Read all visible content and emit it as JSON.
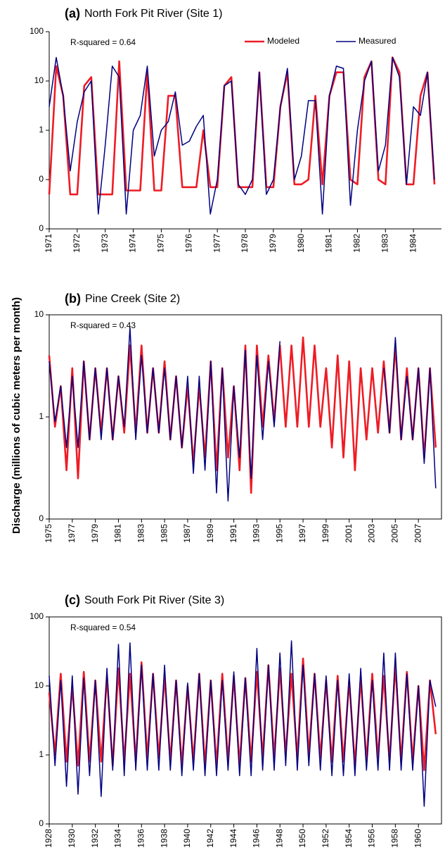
{
  "y_label": "Discharge (millions of cubic meters per month)",
  "chart_data": [
    {
      "type": "line",
      "label": "(a)",
      "title": "North Fork Pit River (Site 1)",
      "annotation": "R-squared = 0.64",
      "log_y": true,
      "box": false,
      "legend": "top-right",
      "ylim": [
        0.01,
        100
      ],
      "yticks": [
        {
          "value": 0.01,
          "label": "0"
        },
        {
          "value": 0.1,
          "label": "0"
        },
        1,
        10,
        100
      ],
      "xlim": [
        1971,
        1985
      ],
      "xticks": [
        1971,
        1972,
        1973,
        1974,
        1975,
        1976,
        1977,
        1978,
        1979,
        1980,
        1981,
        1982,
        1983,
        1984
      ],
      "x": [
        1971,
        1971.25,
        1971.5,
        1971.75,
        1972,
        1972.25,
        1972.5,
        1972.75,
        1973,
        1973.25,
        1973.5,
        1973.75,
        1974,
        1974.25,
        1974.5,
        1974.75,
        1975,
        1975.25,
        1975.5,
        1975.75,
        1976,
        1976.25,
        1976.5,
        1976.75,
        1977,
        1977.25,
        1977.5,
        1977.75,
        1978,
        1978.25,
        1978.5,
        1978.75,
        1979,
        1979.25,
        1979.5,
        1979.75,
        1980,
        1980.25,
        1980.5,
        1980.75,
        1981,
        1981.25,
        1981.5,
        1981.75,
        1982,
        1982.25,
        1982.5,
        1982.75,
        1983,
        1983.25,
        1983.5,
        1983.75,
        1984,
        1984.25,
        1984.5,
        1984.75
      ],
      "series": [
        {
          "name": "Modeled",
          "color": "#ee1c25",
          "values": [
            0.05,
            20,
            5,
            0.05,
            0.05,
            8,
            12,
            0.05,
            0.05,
            0.05,
            25,
            0.06,
            0.06,
            0.06,
            15,
            0.06,
            0.06,
            5,
            5,
            0.07,
            0.07,
            0.07,
            1,
            0.07,
            0.07,
            8,
            12,
            0.07,
            0.07,
            0.07,
            15,
            0.07,
            0.07,
            3,
            15,
            0.08,
            0.08,
            0.1,
            5,
            0.08,
            5,
            15,
            15,
            0.1,
            0.08,
            12,
            25,
            0.1,
            0.08,
            30,
            15,
            0.08,
            0.08,
            5,
            15,
            0.08
          ]
        },
        {
          "name": "Measured",
          "color": "#000080",
          "values": [
            3,
            30,
            5,
            0.15,
            1.5,
            6,
            10,
            0.02,
            0.5,
            20,
            12,
            0.02,
            1,
            2,
            20,
            0.3,
            1,
            1.5,
            6,
            0.5,
            0.6,
            1.2,
            2,
            0.02,
            0.1,
            8,
            10,
            0.08,
            0.05,
            0.1,
            15,
            0.05,
            0.1,
            3,
            18,
            0.1,
            0.3,
            4,
            4,
            0.02,
            5,
            20,
            18,
            0.03,
            1,
            10,
            25,
            0.15,
            0.5,
            30,
            12,
            0.08,
            3,
            2,
            15,
            0.1
          ]
        }
      ]
    },
    {
      "type": "line",
      "label": "(b)",
      "title": "Pine Creek (Site 2)",
      "annotation": "R-squared = 0.43",
      "log_y": true,
      "box": true,
      "ylim": [
        0.1,
        10
      ],
      "yticks": [
        {
          "value": 0.1,
          "label": "0"
        },
        1,
        10
      ],
      "xlim": [
        1975,
        2009
      ],
      "xticks": [
        1975,
        1977,
        1979,
        1981,
        1983,
        1985,
        1987,
        1989,
        1991,
        1993,
        1995,
        1997,
        1999,
        2001,
        2003,
        2005,
        2007
      ],
      "x": [
        1975,
        1975.5,
        1976,
        1976.5,
        1977,
        1977.5,
        1978,
        1978.5,
        1979,
        1979.5,
        1980,
        1980.5,
        1981,
        1981.5,
        1982,
        1982.5,
        1983,
        1983.5,
        1984,
        1984.5,
        1985,
        1985.5,
        1986,
        1986.5,
        1987,
        1987.5,
        1988,
        1988.5,
        1989,
        1989.5,
        1990,
        1990.5,
        1991,
        1991.5,
        1992,
        1992.5,
        1993,
        1993.5,
        1994,
        1994.5,
        1995,
        1995.5,
        1996,
        1996.5,
        1997,
        1997.5,
        1998,
        1998.5,
        1999,
        1999.5,
        2000,
        2000.5,
        2001,
        2001.5,
        2002,
        2002.5,
        2003,
        2003.5,
        2004,
        2004.5,
        2005,
        2005.5,
        2006,
        2006.5,
        2007,
        2007.5,
        2008,
        2008.5
      ],
      "series": [
        {
          "color": "#ee1c25",
          "values": [
            4,
            0.8,
            2,
            0.3,
            3,
            0.25,
            3.5,
            0.6,
            3,
            0.7,
            3,
            0.6,
            2.5,
            0.7,
            5,
            0.7,
            5,
            0.7,
            3,
            0.7,
            3.5,
            0.6,
            2.5,
            0.5,
            2,
            0.35,
            2,
            0.4,
            3.5,
            0.3,
            3,
            0.4,
            2,
            0.3,
            5,
            0.18,
            5,
            0.8,
            4,
            0.9,
            5,
            0.8,
            5,
            0.8,
            6,
            0.8,
            5,
            0.8,
            3,
            0.5,
            4,
            0.4,
            3.5,
            0.3,
            3,
            0.6,
            3,
            0.7,
            3.5,
            0.7,
            5,
            0.6,
            3,
            0.6,
            3,
            0.4,
            3,
            0.5
          ]
        },
        {
          "color": "#000080",
          "values": [
            3.5,
            0.9,
            2,
            0.5,
            2.5,
            0.5,
            3.5,
            0.6,
            3,
            0.6,
            3,
            0.6,
            2.5,
            0.8,
            7.5,
            0.6,
            4,
            0.7,
            3,
            0.7,
            3,
            0.6,
            2.5,
            0.5,
            2.5,
            0.28,
            2.5,
            0.3,
            3.5,
            0.18,
            3,
            0.15,
            2,
            0.4,
            4.5,
            0.25,
            4,
            0.6,
            3.5,
            0.8,
            5.5,
            null,
            null,
            null,
            null,
            null,
            null,
            null,
            null,
            null,
            null,
            null,
            null,
            null,
            null,
            null,
            null,
            null,
            3,
            0.7,
            6,
            0.6,
            2.5,
            0.6,
            3,
            0.35,
            3,
            0.2
          ]
        }
      ]
    },
    {
      "type": "line",
      "label": "(c)",
      "title": "South Fork Pit River (Site 3)",
      "annotation": "R-squared = 0.54",
      "log_y": true,
      "box": true,
      "ylim": [
        0.1,
        100
      ],
      "yticks": [
        {
          "value": 0.1,
          "label": "0"
        },
        1,
        10,
        100
      ],
      "xlim": [
        1928,
        1962
      ],
      "xticks": [
        1928,
        1930,
        1932,
        1934,
        1936,
        1938,
        1940,
        1942,
        1944,
        1946,
        1948,
        1950,
        1952,
        1954,
        1956,
        1958,
        1960
      ],
      "x": [
        1928,
        1928.5,
        1929,
        1929.5,
        1930,
        1930.5,
        1931,
        1931.5,
        1932,
        1932.5,
        1933,
        1933.5,
        1934,
        1934.5,
        1935,
        1935.5,
        1936,
        1936.5,
        1937,
        1937.5,
        1938,
        1938.5,
        1939,
        1939.5,
        1940,
        1940.5,
        1941,
        1941.5,
        1942,
        1942.5,
        1943,
        1943.5,
        1944,
        1944.5,
        1945,
        1945.5,
        1946,
        1946.5,
        1947,
        1947.5,
        1948,
        1948.5,
        1949,
        1949.5,
        1950,
        1950.5,
        1951,
        1951.5,
        1952,
        1952.5,
        1953,
        1953.5,
        1954,
        1954.5,
        1955,
        1955.5,
        1956,
        1956.5,
        1957,
        1957.5,
        1958,
        1958.5,
        1959,
        1959.5,
        1960,
        1960.5,
        1961,
        1961.5
      ],
      "series": [
        {
          "color": "#ee1c25",
          "values": [
            8,
            1,
            15,
            0.8,
            10,
            0.7,
            16,
            0.8,
            12,
            0.8,
            14,
            0.7,
            18,
            0.8,
            15,
            0.8,
            22,
            0.9,
            15,
            0.9,
            14,
            0.8,
            12,
            0.7,
            10,
            0.8,
            15,
            0.7,
            12,
            0.7,
            15,
            0.8,
            14,
            0.7,
            13,
            0.8,
            16,
            0.9,
            20,
            0.9,
            18,
            1,
            15,
            0.9,
            25,
            1,
            15,
            0.9,
            12,
            0.8,
            14,
            0.8,
            12,
            0.7,
            13,
            0.8,
            15,
            0.9,
            14,
            0.8,
            20,
            0.8,
            16,
            0.8,
            10,
            0.6,
            12,
            2
          ]
        },
        {
          "color": "#000080",
          "values": [
            14,
            0.7,
            12,
            0.35,
            14,
            0.27,
            13,
            0.5,
            12,
            0.25,
            18,
            0.6,
            40,
            0.5,
            42,
            0.6,
            20,
            0.6,
            15,
            0.6,
            20,
            0.6,
            12,
            0.5,
            11,
            0.6,
            15,
            0.5,
            12,
            0.5,
            12,
            0.6,
            16,
            0.5,
            13,
            0.5,
            35,
            0.6,
            20,
            0.6,
            30,
            0.7,
            45,
            0.6,
            20,
            0.7,
            15,
            0.6,
            14,
            0.5,
            12,
            0.5,
            15,
            0.5,
            18,
            0.6,
            12,
            0.6,
            30,
            0.6,
            30,
            0.6,
            15,
            0.6,
            10,
            0.18,
            12,
            5
          ]
        }
      ]
    }
  ]
}
